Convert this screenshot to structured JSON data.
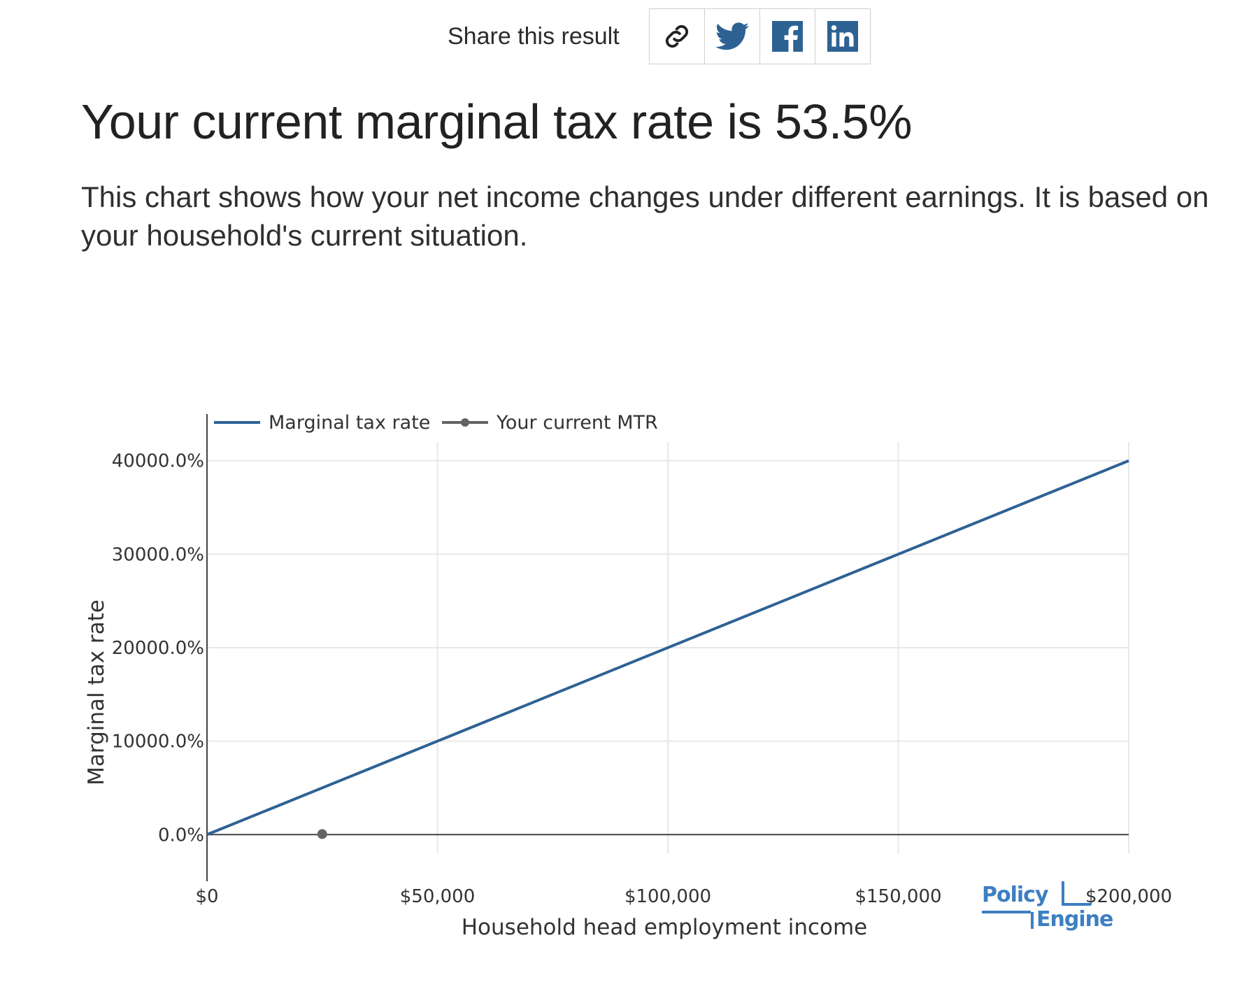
{
  "share": {
    "label": "Share this result",
    "buttons": [
      {
        "name": "copy-link",
        "icon": "link-icon"
      },
      {
        "name": "twitter",
        "icon": "twitter-icon"
      },
      {
        "name": "facebook",
        "icon": "facebook-icon"
      },
      {
        "name": "linkedin",
        "icon": "linkedin-icon"
      }
    ]
  },
  "headline": "Your current marginal tax rate is 53.5%",
  "description": "This chart shows how your net income changes under different earnings. It is based on your household's current situation.",
  "brand": {
    "line1": "Policy",
    "line2": "Engine",
    "color": "#3d7fc1"
  },
  "colors": {
    "series": "#2e6294",
    "marker": "#636363",
    "share_icon_blue": "#2e6294"
  },
  "chart_data": {
    "type": "line",
    "xlabel": "Household head employment income",
    "ylabel": "Marginal tax rate",
    "xlim": [
      0,
      200000
    ],
    "ylim": [
      -2000,
      42000
    ],
    "x_ticks": [
      0,
      50000,
      100000,
      150000,
      200000
    ],
    "x_tick_labels": [
      "$0",
      "$50,000",
      "$100,000",
      "$150,000",
      "$200,000"
    ],
    "y_ticks": [
      0,
      10000,
      20000,
      30000,
      40000
    ],
    "y_tick_labels": [
      "0.0%",
      "10000.0%",
      "20000.0%",
      "30000.0%",
      "40000.0%"
    ],
    "grid": true,
    "legend_position": "top-left",
    "series": [
      {
        "name": "Marginal tax rate",
        "mode": "line",
        "x": [
          0,
          200000
        ],
        "y": [
          0,
          40000
        ]
      },
      {
        "name": "Your current MTR",
        "mode": "marker",
        "x": [
          25000
        ],
        "y": [
          53.5
        ]
      }
    ]
  }
}
